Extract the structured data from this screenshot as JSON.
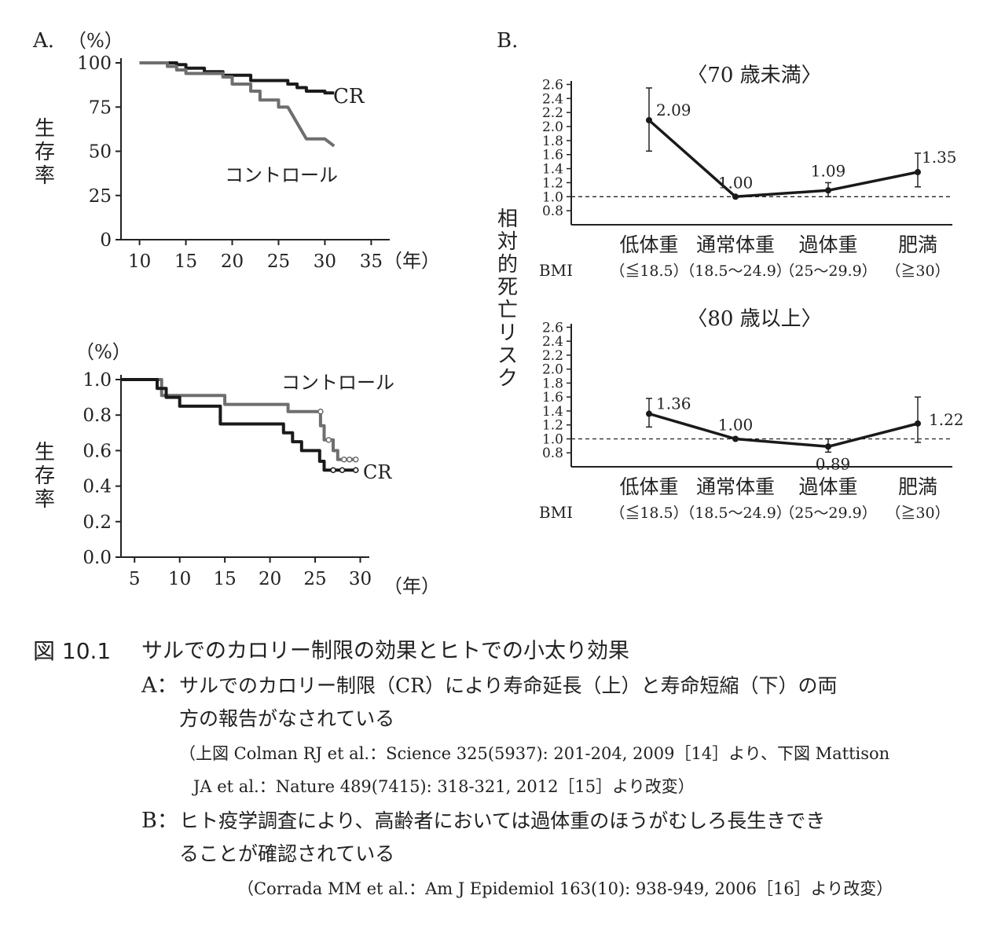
{
  "panelA": {
    "label": "A.",
    "top": {
      "y_unit": "（%）",
      "y_label": "生存率",
      "x_unit": "（年）",
      "y_ticks": [
        "100",
        "75",
        "50",
        "25",
        "0"
      ],
      "x_ticks": [
        "10",
        "15",
        "20",
        "25",
        "30",
        "35"
      ],
      "series_labels": {
        "cr": "CR",
        "control": "コントロール"
      }
    },
    "bottom": {
      "y_unit": "（%）",
      "y_label": "生存率",
      "x_unit": "（年）",
      "y_ticks": [
        "1.0",
        "0.8",
        "0.6",
        "0.4",
        "0.2",
        "0.0"
      ],
      "x_ticks": [
        "5",
        "10",
        "15",
        "20",
        "25",
        "30"
      ],
      "series_labels": {
        "cr": "CR",
        "control": "コントロール"
      }
    }
  },
  "panelB": {
    "label": "B.",
    "y_label": "相対的死亡リスク",
    "bmi_label": "BMI",
    "categories": [
      "低体重",
      "通常体重",
      "過体重",
      "肥満"
    ],
    "ranges": [
      "（≦18.5）",
      "（18.5〜24.9）",
      "（25〜29.9）",
      "（≧30）"
    ],
    "y_ticks": [
      "2.6",
      "2.4",
      "2.2",
      "2.0",
      "1.8",
      "1.6",
      "1.4",
      "1.2",
      "1.0",
      "0.8"
    ],
    "charts": [
      {
        "title": "〈70 歳未満〉",
        "labels": [
          "2.09",
          "1.00",
          "1.09",
          "1.35"
        ]
      },
      {
        "title": "〈80 歳以上〉",
        "labels": [
          "1.36",
          "1.00",
          "0.89",
          "1.22"
        ]
      }
    ]
  },
  "caption": {
    "figure_no": "図 10.1",
    "title": "サルでのカロリー制限の効果とヒトでの小太り効果",
    "a_label": "A：",
    "a_line1": "サルでのカロリー制限（CR）により寿命延長（上）と寿命短縮（下）の両",
    "a_line2": "方の報告がなされている",
    "a_ref1": "（上図 Colman RJ et al.：Science 325(5937): 201-204, 2009［14］より、下図 Mattison",
    "a_ref2": "JA et al.：Nature  489(7415):  318-321, 2012［15］より改変）",
    "b_label": "B：",
    "b_line1": "ヒト疫学調査により、高齢者においては過体重のほうがむしろ長生きでき",
    "b_line2": "ることが確認されている",
    "b_ref": "（Corrada MM et al.：Am J Epidemiol  163(10): 938-949, 2006［16］より改変）"
  },
  "chart_data": [
    {
      "type": "line",
      "title": "",
      "xlabel": "（年）",
      "ylabel": "生存率 （%）",
      "xlim": [
        8,
        37
      ],
      "ylim": [
        0,
        100
      ],
      "grid": false,
      "series": [
        {
          "name": "CR",
          "color": "#1a1a1a",
          "points": [
            [
              10,
              100
            ],
            [
              14,
              100
            ],
            [
              14,
              99
            ],
            [
              15,
              99
            ],
            [
              15,
              97
            ],
            [
              17,
              97
            ],
            [
              17,
              95
            ],
            [
              19,
              95
            ],
            [
              19,
              93
            ],
            [
              22,
              93
            ],
            [
              22,
              90
            ],
            [
              26,
              90
            ],
            [
              26,
              88
            ],
            [
              27,
              88
            ],
            [
              27,
              86
            ],
            [
              28,
              86
            ],
            [
              28,
              84
            ],
            [
              30,
              84
            ],
            [
              30,
              83
            ],
            [
              31,
              83
            ]
          ]
        },
        {
          "name": "コントロール",
          "color": "#6e6e6e",
          "points": [
            [
              10,
              100
            ],
            [
              13,
              100
            ],
            [
              13,
              98
            ],
            [
              14,
              98
            ],
            [
              14,
              96
            ],
            [
              15,
              96
            ],
            [
              15,
              94
            ],
            [
              19,
              94
            ],
            [
              19,
              92
            ],
            [
              20,
              92
            ],
            [
              20,
              88
            ],
            [
              22,
              88
            ],
            [
              22,
              84
            ],
            [
              23,
              84
            ],
            [
              23,
              79
            ],
            [
              25,
              79
            ],
            [
              25,
              75
            ],
            [
              26,
              75
            ],
            [
              28,
              57
            ],
            [
              30,
              57
            ],
            [
              31,
              53
            ]
          ]
        }
      ]
    },
    {
      "type": "line",
      "title": "",
      "xlabel": "（年）",
      "ylabel": "生存率 （%）",
      "xlim": [
        3.5,
        31
      ],
      "ylim": [
        0,
        1.0
      ],
      "grid": false,
      "series": [
        {
          "name": "コントロール",
          "color": "#6e6e6e",
          "points": [
            [
              3.5,
              1.0
            ],
            [
              8,
              1.0
            ],
            [
              8,
              0.91
            ],
            [
              15,
              0.91
            ],
            [
              15,
              0.86
            ],
            [
              22,
              0.86
            ],
            [
              22,
              0.82
            ],
            [
              25.6,
              0.82
            ],
            [
              25.6,
              0.74
            ],
            [
              26,
              0.74
            ],
            [
              26,
              0.66
            ],
            [
              27,
              0.66
            ],
            [
              27,
              0.6
            ],
            [
              27.5,
              0.6
            ],
            [
              27.5,
              0.55
            ],
            [
              29.5,
              0.55
            ]
          ],
          "censored": [
            [
              25.6,
              0.82
            ],
            [
              26.5,
              0.66
            ],
            [
              28.2,
              0.55
            ],
            [
              28.8,
              0.55
            ],
            [
              29.5,
              0.55
            ]
          ]
        },
        {
          "name": "CR",
          "color": "#1a1a1a",
          "points": [
            [
              3.5,
              1.0
            ],
            [
              7.5,
              1.0
            ],
            [
              7.5,
              0.95
            ],
            [
              8.5,
              0.95
            ],
            [
              8.5,
              0.9
            ],
            [
              10,
              0.9
            ],
            [
              10,
              0.85
            ],
            [
              14.5,
              0.85
            ],
            [
              14.5,
              0.75
            ],
            [
              21.5,
              0.75
            ],
            [
              21.5,
              0.7
            ],
            [
              22.5,
              0.7
            ],
            [
              22.5,
              0.65
            ],
            [
              23.5,
              0.65
            ],
            [
              23.5,
              0.6
            ],
            [
              25.5,
              0.6
            ],
            [
              25.5,
              0.54
            ],
            [
              26,
              0.54
            ],
            [
              26,
              0.49
            ],
            [
              29.5,
              0.49
            ]
          ],
          "censored": [
            [
              27,
              0.49
            ],
            [
              28,
              0.49
            ],
            [
              29.5,
              0.49
            ]
          ]
        }
      ]
    },
    {
      "type": "line",
      "title": "〈70 歳未満〉",
      "xlabel": "BMI",
      "ylabel": "相対的死亡リスク",
      "categories": [
        "低体重（≦18.5）",
        "通常体重（18.5〜24.9）",
        "過体重（25〜29.9）",
        "肥満（≧30）"
      ],
      "values": [
        2.09,
        1.0,
        1.09,
        1.35
      ],
      "error_low": [
        1.65,
        1.0,
        1.0,
        1.14
      ],
      "error_high": [
        2.55,
        1.0,
        1.2,
        1.62
      ],
      "reference_line": 1.0,
      "ylim": [
        0.6,
        2.65
      ]
    },
    {
      "type": "line",
      "title": "〈80 歳以上〉",
      "xlabel": "BMI",
      "ylabel": "相対的死亡リスク",
      "categories": [
        "低体重（≦18.5）",
        "通常体重（18.5〜24.9）",
        "過体重（25〜29.9）",
        "肥満（≧30）"
      ],
      "values": [
        1.36,
        1.0,
        0.89,
        1.22
      ],
      "error_low": [
        1.17,
        1.0,
        0.81,
        0.95
      ],
      "error_high": [
        1.58,
        1.0,
        1.0,
        1.6
      ],
      "reference_line": 1.0,
      "ylim": [
        0.6,
        2.65
      ]
    }
  ]
}
